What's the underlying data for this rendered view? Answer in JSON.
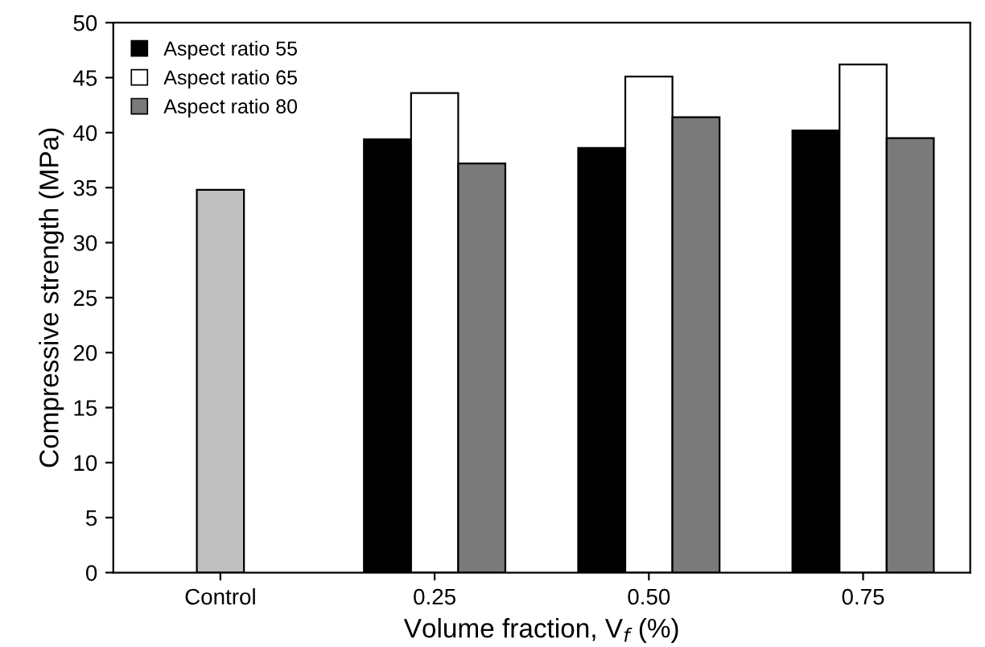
{
  "chart_data": {
    "type": "bar",
    "xlabel": "Volume fraction, V$_{f}$ (%)",
    "ylabel": "Compressive strength (MPa)",
    "categories": [
      "Control",
      "0.25",
      "0.50",
      "0.75"
    ],
    "series": [
      {
        "color": "#c0c0c0",
        "values": [
          34.8,
          null,
          null,
          null
        ]
      },
      {
        "name": "Aspect ratio 55",
        "color": "#000000",
        "values": [
          null,
          39.4,
          38.6,
          40.2
        ]
      },
      {
        "name": "Aspect ratio 65",
        "color": "#ffffff",
        "values": [
          null,
          43.6,
          45.1,
          46.2
        ]
      },
      {
        "name": "Aspect ratio 80",
        "color": "#7a7a7a",
        "values": [
          null,
          37.2,
          41.4,
          39.5
        ]
      }
    ],
    "ylim": [
      0,
      50
    ],
    "yticks": [
      0,
      5,
      10,
      15,
      20,
      25,
      30,
      35,
      40,
      45,
      50
    ],
    "grid": false,
    "legend": "top left"
  }
}
